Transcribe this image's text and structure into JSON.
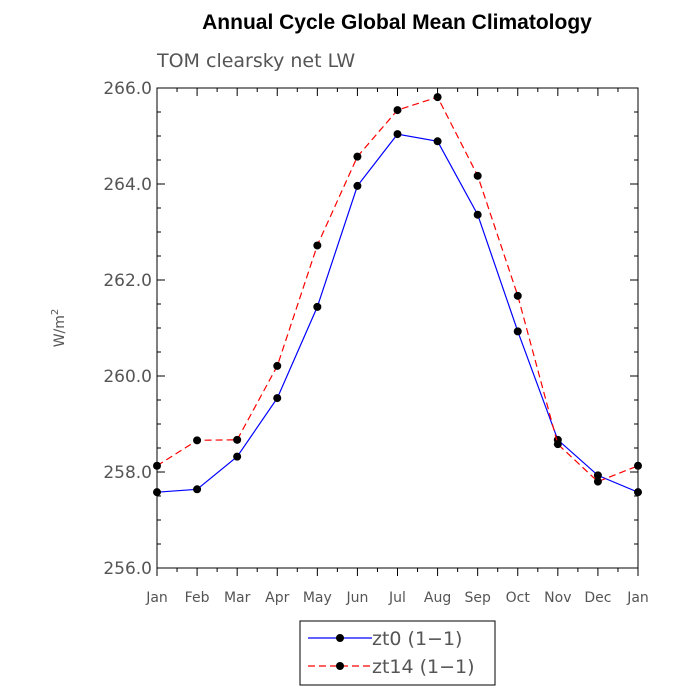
{
  "chart_data": {
    "type": "line",
    "title": "Annual Cycle Global Mean Climatology",
    "subtitle": "TOM clearsky net LW",
    "ylabel_base": "W/m",
    "ylabel_sup": "2",
    "xlabel": "",
    "categories": [
      "Jan",
      "Feb",
      "Mar",
      "Apr",
      "May",
      "Jun",
      "Jul",
      "Aug",
      "Sep",
      "Oct",
      "Nov",
      "Dec",
      "Jan"
    ],
    "ylim": [
      256.0,
      266.0
    ],
    "yticks": [
      256.0,
      258.0,
      260.0,
      262.0,
      264.0,
      266.0
    ],
    "ytick_labels": [
      "256.0",
      "258.0",
      "260.0",
      "262.0",
      "264.0",
      "266.0"
    ],
    "grid": false,
    "legend_position": "bottom-center",
    "series": [
      {
        "name": "zt0 (1−1)",
        "color": "#0000ff",
        "dash": "solid",
        "values": [
          257.58,
          257.64,
          258.32,
          259.54,
          261.44,
          263.96,
          265.04,
          264.89,
          263.36,
          260.93,
          258.67,
          257.93,
          257.58
        ]
      },
      {
        "name": "zt14 (1−1)",
        "color": "#ff0000",
        "dash": "dashed",
        "values": [
          258.13,
          258.66,
          258.67,
          260.21,
          262.72,
          264.57,
          265.54,
          265.81,
          264.17,
          261.67,
          258.58,
          257.8,
          258.13
        ]
      }
    ]
  }
}
